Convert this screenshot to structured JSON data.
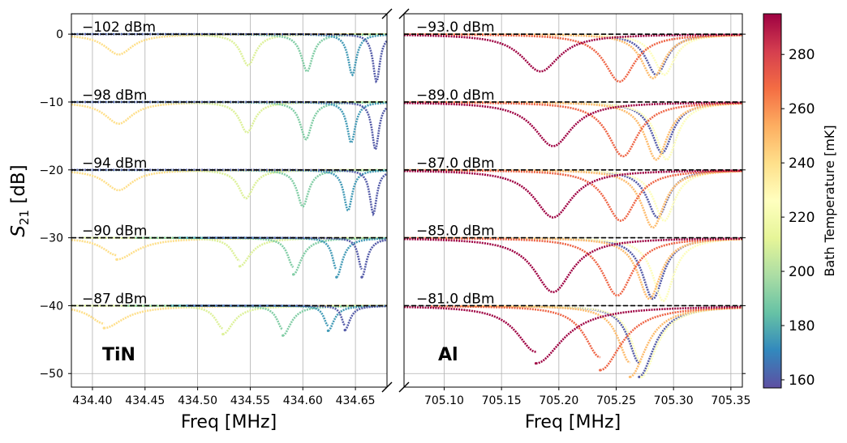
{
  "chart_data": {
    "type": "scatter",
    "colormap": "Spectral_r",
    "ylabel": "S21 [dB]",
    "yticks": [
      0,
      -10,
      -20,
      -30,
      -40,
      -50
    ],
    "ylim": [
      -52,
      3
    ],
    "colorbar": {
      "label": "Bath Temperature [mK]",
      "range": [
        157,
        295
      ],
      "ticks": [
        160,
        180,
        200,
        220,
        240,
        260,
        280
      ],
      "colors": [
        "#5e4fa2",
        "#3288bd",
        "#66c2a5",
        "#abdda4",
        "#e6f598",
        "#ffffbf",
        "#fee08b",
        "#fdae61",
        "#f46d43",
        "#d53e4f",
        "#9e0142"
      ]
    },
    "panels": [
      {
        "name": "TiN",
        "label": "TiN",
        "xlabel": "Freq [MHz]",
        "xlim": [
          434.38,
          434.68
        ],
        "xticks": [
          "434.40",
          "434.45",
          "434.50",
          "434.55",
          "434.60",
          "434.65"
        ],
        "tick_values": [
          434.4,
          434.45,
          434.5,
          434.55,
          434.6,
          434.65
        ],
        "groups": [
          {
            "power": "−102 dBm",
            "offset": 0,
            "bifurcated": false
          },
          {
            "power": "−98 dBm",
            "offset": -10,
            "bifurcated": false
          },
          {
            "power": "−94 dBm",
            "offset": -20,
            "bifurcated": false
          },
          {
            "power": "−90 dBm",
            "offset": -30,
            "bifurcated": true
          },
          {
            "power": "−87 dBm",
            "offset": -40,
            "bifurcated": true
          }
        ],
        "series": [
          {
            "temperature": 240,
            "f0": [
              434.425,
              434.425,
              434.425,
              434.423,
              434.411
            ],
            "depth": [
              3,
              3.2,
              3,
              3.2,
              3.3
            ],
            "width": 0.016
          },
          {
            "temperature": 210,
            "f0": [
              434.548,
              434.547,
              434.546,
              434.54,
              434.524
            ],
            "depth": [
              4.6,
              4.5,
              4.2,
              4.2,
              4.2
            ],
            "width": 0.0085
          },
          {
            "temperature": 190,
            "f0": [
              434.604,
              434.603,
              434.6,
              434.591,
              434.581
            ],
            "depth": [
              5.5,
              5.5,
              5.4,
              5.4,
              4.4
            ],
            "width": 0.0065
          },
          {
            "temperature": 175,
            "f0": [
              434.647,
              434.646,
              434.643,
              434.632,
              434.624
            ],
            "depth": [
              6,
              6,
              6,
              5.8,
              3.7
            ],
            "width": 0.0048
          },
          {
            "temperature": 160,
            "f0": [
              434.67,
              434.669,
              434.667,
              434.656,
              434.64
            ],
            "depth": [
              7,
              7,
              6.5,
              5.8,
              3.6
            ],
            "width": 0.004
          }
        ]
      },
      {
        "name": "Al",
        "label": "Al",
        "xlabel": "Freq [MHz]",
        "xlim": [
          705.065,
          705.36
        ],
        "xticks": [
          "705.10",
          "705.15",
          "705.20",
          "705.25",
          "705.30",
          "705.35"
        ],
        "tick_values": [
          705.1,
          705.15,
          705.2,
          705.25,
          705.3,
          705.35
        ],
        "groups": [
          {
            "power": "−93.0 dBm",
            "offset": 0,
            "bifurcated": false
          },
          {
            "power": "−89.0 dBm",
            "offset": -10,
            "bifurcated": false
          },
          {
            "power": "−87.0 dBm",
            "offset": -20,
            "bifurcated": false
          },
          {
            "power": "−85.0 dBm",
            "offset": -30,
            "bifurcated": false
          },
          {
            "power": "−81.0 dBm",
            "offset": -40,
            "bifurcated": true
          }
        ],
        "series": [
          {
            "temperature": 160,
            "f0": [
              705.285,
              705.29,
              705.286,
              705.282,
              705.27
            ],
            "depth": [
              6,
              7.5,
              7,
              9,
              10.5
            ],
            "width": 0.011
          },
          {
            "temperature": 225,
            "f0": [
              705.292,
              705.294,
              705.292,
              705.291,
              705.272
            ],
            "depth": [
              6,
              8.5,
              7.5,
              9.3,
              10.5
            ],
            "width": 0.011
          },
          {
            "temperature": 250,
            "f0": [
              705.282,
              705.285,
              705.282,
              705.279,
              705.262
            ],
            "depth": [
              6.5,
              8.5,
              8.5,
              9,
              10.5
            ],
            "width": 0.012
          },
          {
            "temperature": 270,
            "f0": [
              705.253,
              705.256,
              705.254,
              705.251,
              705.236
            ],
            "depth": [
              7,
              8,
              7.5,
              8.5,
              9.5
            ],
            "width": 0.016
          },
          {
            "temperature": 295,
            "f0": [
              705.184,
              705.195,
              705.195,
              705.195,
              705.18
            ],
            "depth": [
              5.5,
              6.5,
              7,
              8,
              8.5
            ],
            "width": 0.02
          }
        ]
      }
    ]
  }
}
